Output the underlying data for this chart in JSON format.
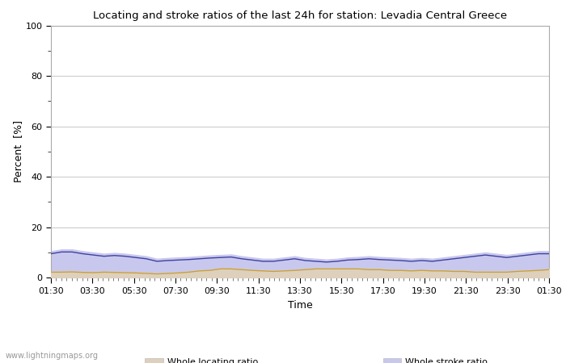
{
  "title": "Locating and stroke ratios of the last 24h for station: Levadia Central Greece",
  "xlabel": "Time",
  "ylabel": "Percent  [%]",
  "xlim": [
    0,
    48
  ],
  "ylim": [
    0,
    100
  ],
  "yticks": [
    0,
    20,
    40,
    60,
    80,
    100
  ],
  "ytick_minor": [
    10,
    30,
    50,
    70,
    90
  ],
  "xtick_labels": [
    "01:30",
    "03:30",
    "05:30",
    "07:30",
    "09:30",
    "11:30",
    "13:30",
    "15:30",
    "17:30",
    "19:30",
    "21:30",
    "23:30",
    "01:30"
  ],
  "background_color": "#ffffff",
  "plot_bg_color": "#ffffff",
  "grid_color": "#cccccc",
  "fill_locating_color": "#ddd0bc",
  "fill_stroke_color": "#c8c8ee",
  "line_locating_color": "#c8a040",
  "line_stroke_color": "#4040a0",
  "watermark": "www.lightningmaps.org",
  "whole_locating_ratio": [
    2.5,
    2.5,
    2.6,
    2.4,
    2.3,
    2.5,
    2.4,
    2.3,
    2.2,
    2.0,
    1.8,
    2.0,
    2.2,
    2.5,
    3.0,
    3.2,
    3.8,
    3.8,
    3.5,
    3.2,
    3.0,
    2.8,
    3.0,
    3.2,
    3.5,
    3.8,
    3.8,
    3.8,
    3.8,
    3.8,
    3.5,
    3.5,
    3.2,
    3.2,
    3.0,
    3.2,
    3.0,
    3.0,
    2.8,
    2.8,
    2.5,
    2.5,
    2.5,
    2.5,
    2.8,
    3.0,
    3.2,
    3.5
  ],
  "whole_stroke_ratio": [
    10.5,
    11.2,
    11.2,
    10.5,
    10.0,
    9.5,
    9.8,
    9.5,
    9.0,
    8.5,
    7.5,
    7.8,
    8.0,
    8.2,
    8.5,
    8.8,
    9.0,
    9.2,
    8.5,
    8.0,
    7.5,
    7.5,
    8.0,
    8.5,
    7.8,
    7.5,
    7.2,
    7.5,
    8.0,
    8.2,
    8.5,
    8.2,
    8.0,
    7.8,
    7.5,
    7.8,
    7.5,
    8.0,
    8.5,
    9.0,
    9.5,
    10.0,
    9.5,
    9.0,
    9.5,
    10.0,
    10.5,
    10.5
  ],
  "locating_ratio_station": [
    2.2,
    2.2,
    2.3,
    2.1,
    2.0,
    2.2,
    2.1,
    2.0,
    1.9,
    1.7,
    1.5,
    1.7,
    1.9,
    2.2,
    2.7,
    2.9,
    3.5,
    3.5,
    3.2,
    2.9,
    2.7,
    2.5,
    2.7,
    2.9,
    3.2,
    3.5,
    3.5,
    3.5,
    3.5,
    3.5,
    3.2,
    3.2,
    2.9,
    2.9,
    2.7,
    2.9,
    2.7,
    2.7,
    2.5,
    2.5,
    2.2,
    2.2,
    2.2,
    2.2,
    2.5,
    2.7,
    2.9,
    3.2
  ],
  "stroke_ratio_station": [
    9.5,
    10.2,
    10.2,
    9.5,
    9.0,
    8.5,
    8.8,
    8.5,
    8.0,
    7.5,
    6.5,
    6.8,
    7.0,
    7.2,
    7.5,
    7.8,
    8.0,
    8.2,
    7.5,
    7.0,
    6.5,
    6.5,
    7.0,
    7.5,
    6.8,
    6.5,
    6.2,
    6.5,
    7.0,
    7.2,
    7.5,
    7.2,
    7.0,
    6.8,
    6.5,
    6.8,
    6.5,
    7.0,
    7.5,
    8.0,
    8.5,
    9.0,
    8.5,
    8.0,
    8.5,
    9.0,
    9.5,
    9.5
  ]
}
